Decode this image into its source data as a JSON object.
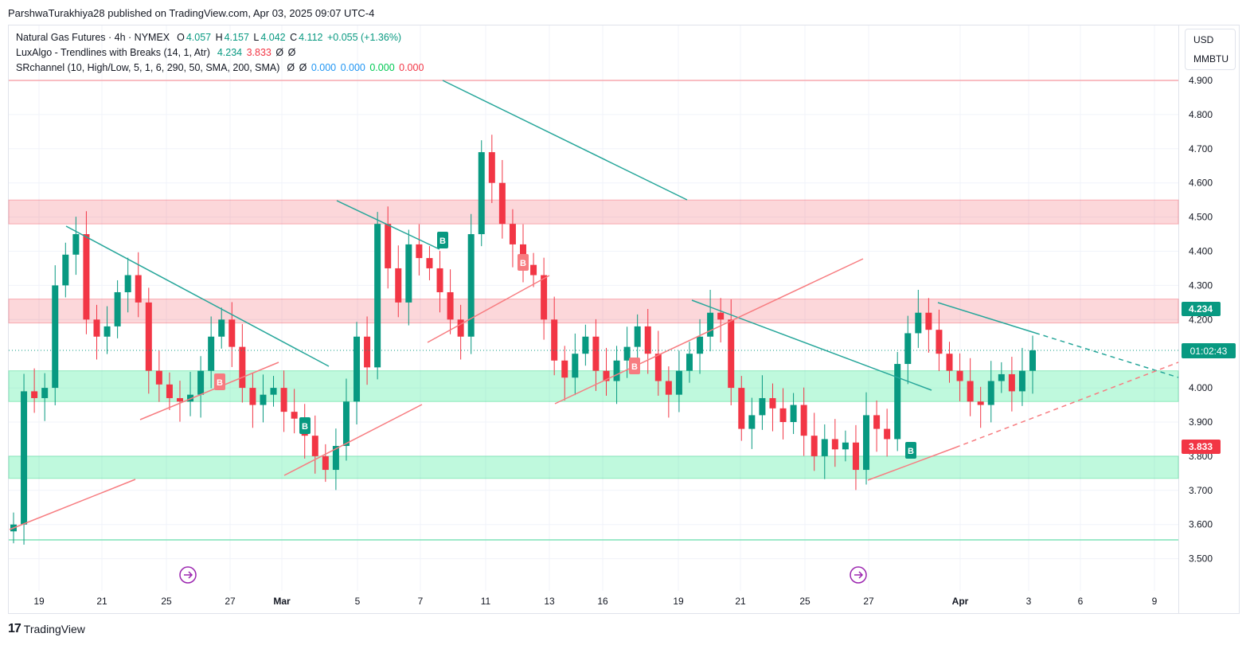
{
  "header": {
    "published": "ParshwaTurakhiya28 published on TradingView.com, Apr 03, 2025 09:07 UTC-4"
  },
  "legend": {
    "symbol": "Natural Gas Futures · 4h · NYMEX",
    "o_label": "O",
    "o_val": "4.057",
    "h_label": "H",
    "h_val": "4.157",
    "l_label": "L",
    "l_val": "4.042",
    "c_label": "C",
    "c_val": "4.112",
    "change": "+0.055 (+1.36%)",
    "luxalgo": "LuxAlgo - Trendlines with Breaks (14, 1, Atr)",
    "lux_v1": "4.234",
    "lux_v2": "3.833",
    "lux_v3": "Ø",
    "lux_v4": "Ø",
    "srch": "SRchannel (10, High/Low, 5, 1, 6, 290, 50, SMA, 200, SMA)",
    "sr_v1": "Ø",
    "sr_v2": "Ø",
    "sr_v3": "0.000",
    "sr_v4": "0.000",
    "sr_v5": "0.000",
    "sr_v6": "0.000"
  },
  "units": {
    "currency": "USD",
    "unit": "MMBTU"
  },
  "footer": {
    "brand": "TradingView",
    "logo": "17"
  },
  "colors": {
    "up": "#089981",
    "down": "#f23645",
    "trend_down": "#26a69a",
    "trend_up": "#f77c80",
    "zone_red": "rgba(242,54,69,0.2)",
    "zone_green": "rgba(0,230,118,0.25)"
  },
  "chart_data": {
    "type": "candlestick",
    "title": "Natural Gas Futures · 4h · NYMEX",
    "ylim": [
      3.43,
      4.95
    ],
    "y_ticks": [
      "4.900",
      "4.800",
      "4.700",
      "4.600",
      "4.500",
      "4.400",
      "4.300",
      "4.200",
      "4.000",
      "3.900",
      "3.800",
      "3.700",
      "3.600",
      "3.500"
    ],
    "x_ticks": [
      "19",
      "21",
      "25",
      "27",
      "Mar",
      "5",
      "7",
      "11",
      "13",
      "16",
      "19",
      "21",
      "25",
      "27",
      "Apr",
      "3",
      "6",
      "9"
    ],
    "price_labels": {
      "last": "01:02:43",
      "upper": "4.234",
      "lower": "3.833",
      "last_price": 4.112
    },
    "closes": [
      3.6,
      3.99,
      3.97,
      4.0,
      4.3,
      4.39,
      4.45,
      4.2,
      4.15,
      4.18,
      4.28,
      4.33,
      4.25,
      4.05,
      4.01,
      3.97,
      3.96,
      3.98,
      4.05,
      4.15,
      4.2,
      4.12,
      4.0,
      3.95,
      3.98,
      4.0,
      3.93,
      3.91,
      3.86,
      3.8,
      3.76,
      3.83,
      3.96,
      4.15,
      4.06,
      4.48,
      4.35,
      4.25,
      4.42,
      4.38,
      4.35,
      4.28,
      4.2,
      4.15,
      4.45,
      4.69,
      4.6,
      4.48,
      4.42,
      4.36,
      4.33,
      4.2,
      4.08,
      4.03,
      4.1,
      4.15,
      4.05,
      4.02,
      4.08,
      4.12,
      4.18,
      4.1,
      4.02,
      3.98,
      4.05,
      4.1,
      4.15,
      4.22,
      4.2,
      4.0,
      3.88,
      3.92,
      3.97,
      3.94,
      3.9,
      3.95,
      3.86,
      3.8,
      3.85,
      3.82,
      3.84,
      3.76,
      3.92,
      3.88,
      3.85,
      4.07,
      4.16,
      4.22,
      4.17,
      4.1,
      4.05,
      4.02,
      3.96,
      3.95,
      4.02,
      4.04,
      3.99,
      4.05,
      4.11
    ],
    "buy_labels": [
      "B",
      "B",
      "B",
      "B"
    ],
    "sell_labels": [
      "B",
      "B",
      "B"
    ],
    "zones": [
      {
        "type": "resistance",
        "low": 4.48,
        "high": 4.55
      },
      {
        "type": "resistance",
        "low": 4.19,
        "high": 4.26
      },
      {
        "type": "support",
        "low": 3.96,
        "high": 4.05
      },
      {
        "type": "support",
        "low": 3.735,
        "high": 3.8
      }
    ],
    "levels": [
      4.9,
      3.555
    ]
  }
}
